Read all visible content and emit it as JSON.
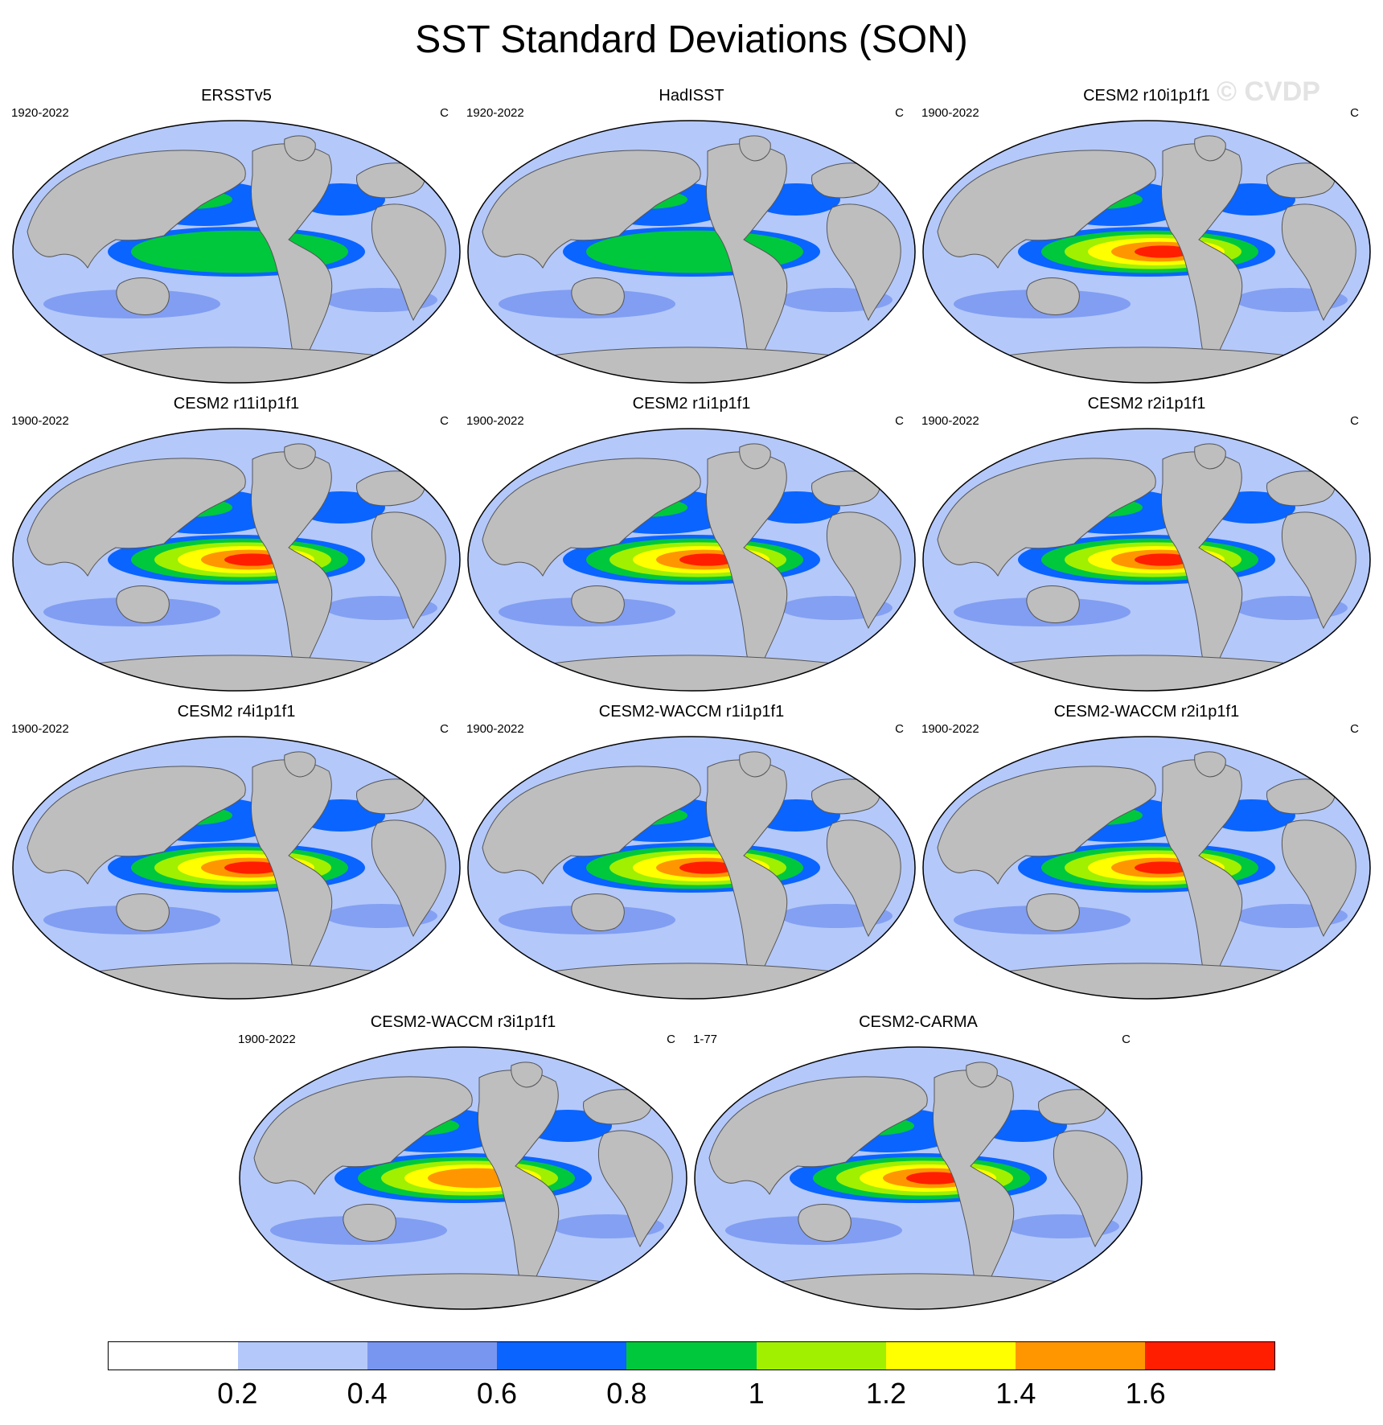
{
  "title": "SST Standard Deviations (SON)",
  "watermark": "© CVDP",
  "panels": [
    {
      "title": "ERSSTv5",
      "years": "1920-2022",
      "units": "C",
      "enso_level": 1.0
    },
    {
      "title": "HadISST",
      "years": "1920-2022",
      "units": "C",
      "enso_level": 0.9
    },
    {
      "title": "CESM2 r10i1p1f1",
      "years": "1900-2022",
      "units": "C",
      "enso_level": 1.7
    },
    {
      "title": "CESM2 r11i1p1f1",
      "years": "1900-2022",
      "units": "C",
      "enso_level": 1.7
    },
    {
      "title": "CESM2 r1i1p1f1",
      "years": "1900-2022",
      "units": "C",
      "enso_level": 1.7
    },
    {
      "title": "CESM2 r2i1p1f1",
      "years": "1900-2022",
      "units": "C",
      "enso_level": 1.8
    },
    {
      "title": "CESM2 r4i1p1f1",
      "years": "1900-2022",
      "units": "C",
      "enso_level": 1.7
    },
    {
      "title": "CESM2-WACCM r1i1p1f1",
      "years": "1900-2022",
      "units": "C",
      "enso_level": 1.7
    },
    {
      "title": "CESM2-WACCM r2i1p1f1",
      "years": "1900-2022",
      "units": "C",
      "enso_level": 1.7
    },
    {
      "title": "CESM2-WACCM r3i1p1f1",
      "years": "1900-2022",
      "units": "C",
      "enso_level": 1.5
    },
    {
      "title": "CESM2-CARMA",
      "years": "1-77",
      "units": "C",
      "enso_level": 1.8
    }
  ],
  "colorbar": {
    "colors": [
      "#ffffff",
      "#b4c8fa",
      "#7896f0",
      "#0a64ff",
      "#00c83c",
      "#a0f000",
      "#ffff00",
      "#ff9600",
      "#ff1e00"
    ],
    "labels": [
      "0.2",
      "0.4",
      "0.6",
      "0.8",
      "1",
      "1.2",
      "1.4",
      "1.6"
    ]
  },
  "colors": {
    "land": "#bebebe",
    "ocean_low": "#b4c8fa",
    "coast": "#555555"
  }
}
